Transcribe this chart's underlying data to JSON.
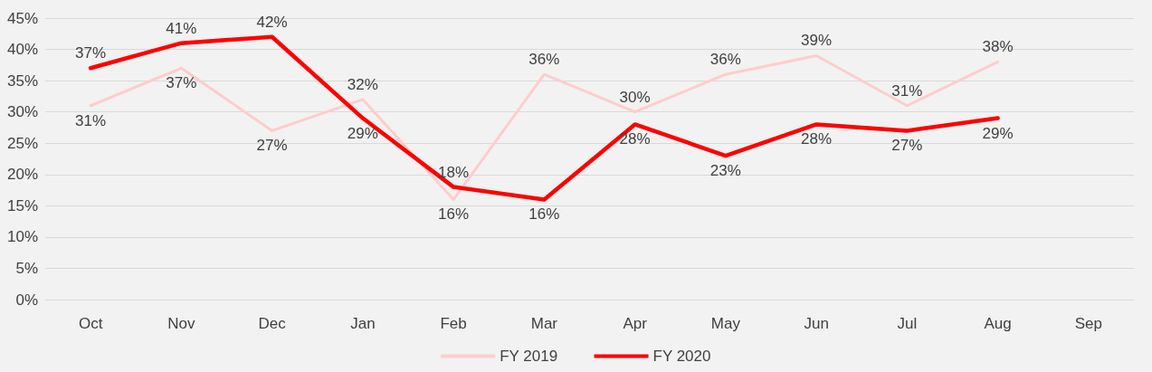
{
  "chart_data": {
    "type": "line",
    "categories": [
      "Oct",
      "Nov",
      "Dec",
      "Jan",
      "Feb",
      "Mar",
      "Apr",
      "May",
      "Jun",
      "Jul",
      "Aug",
      "Sep"
    ],
    "series": [
      {
        "name": "FY 2019",
        "color": "#ffcccc",
        "values": [
          31,
          37,
          27,
          32,
          16,
          36,
          30,
          36,
          39,
          31,
          38,
          null
        ],
        "value_labels": [
          "31%",
          "37%",
          "27%",
          "32%",
          "16%",
          "36%",
          "30%",
          "36%",
          "39%",
          "31%",
          "38%",
          null
        ]
      },
      {
        "name": "FY 2020",
        "color": "#ff0000",
        "values": [
          37,
          41,
          42,
          29,
          18,
          16,
          28,
          23,
          28,
          27,
          29,
          null
        ],
        "value_labels": [
          "37%",
          "41%",
          "42%",
          "29%",
          "18%",
          "16%",
          "28%",
          "23%",
          "28%",
          "27%",
          "29%",
          null
        ]
      }
    ],
    "ylim": [
      0,
      45
    ],
    "yticks": [
      {
        "value": 0,
        "label": "0%"
      },
      {
        "value": 5,
        "label": "5%"
      },
      {
        "value": 10,
        "label": "10%"
      },
      {
        "value": 15,
        "label": "15%"
      },
      {
        "value": 20,
        "label": "20%"
      },
      {
        "value": 25,
        "label": "25%"
      },
      {
        "value": 30,
        "label": "30%"
      },
      {
        "value": 35,
        "label": "35%"
      },
      {
        "value": 40,
        "label": "40%"
      },
      {
        "value": 45,
        "label": "45%"
      }
    ],
    "grid": "y",
    "legend": "bottom",
    "marker": "none",
    "line_style": "solid"
  }
}
